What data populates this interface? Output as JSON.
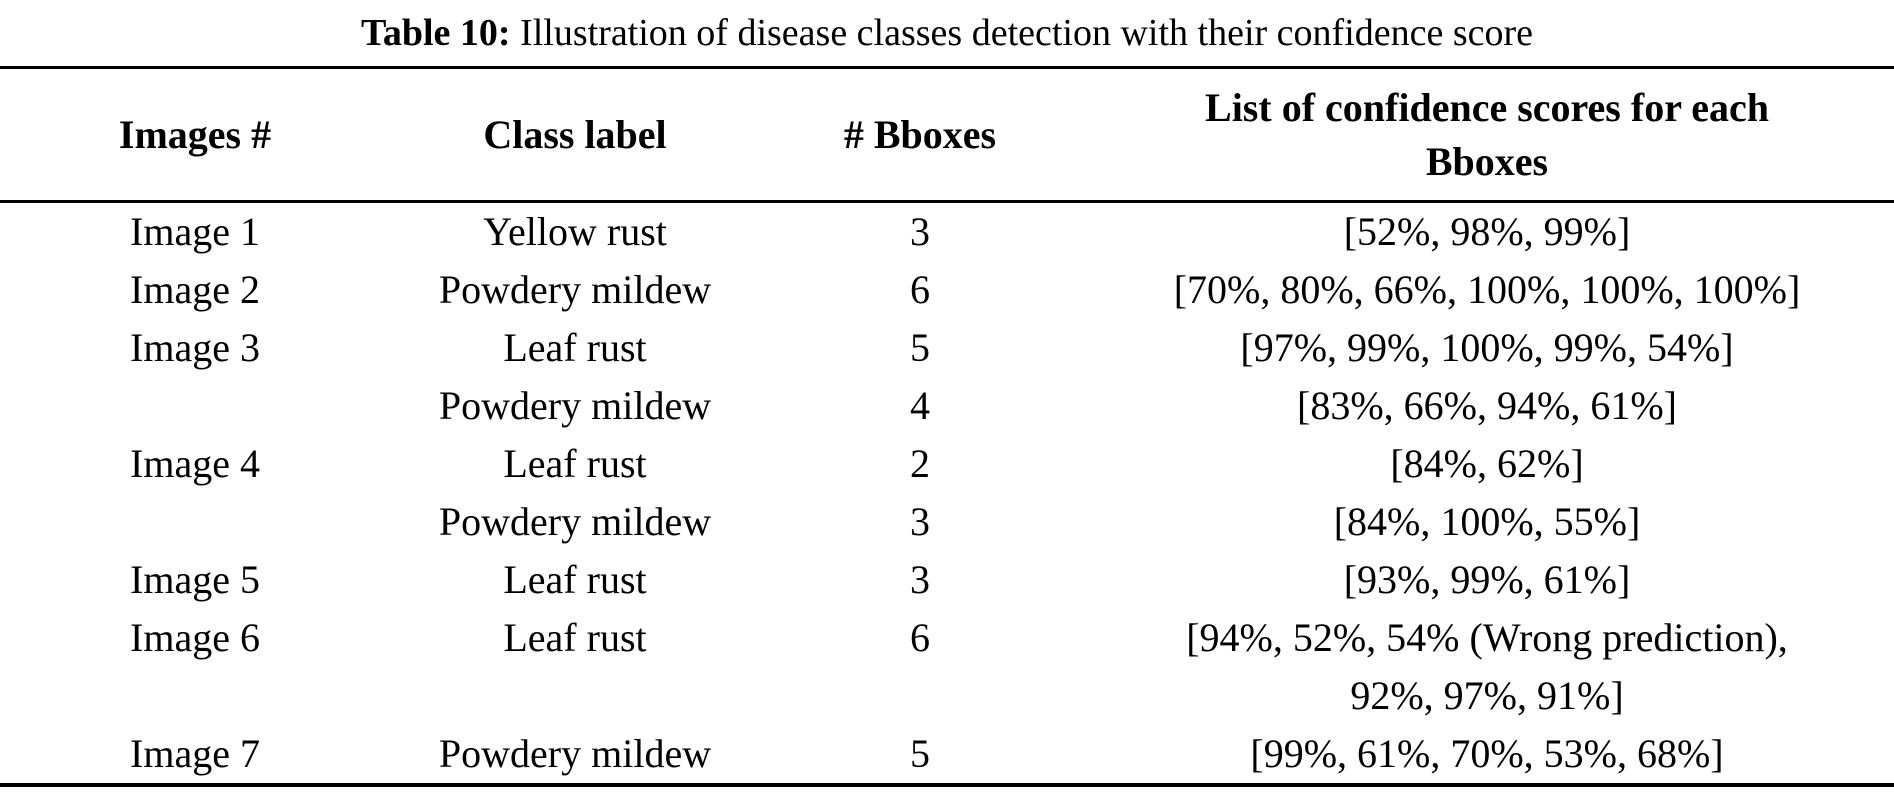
{
  "caption": {
    "label": "Table 10:",
    "text": " Illustration of disease classes detection with their confidence score"
  },
  "table": {
    "columns": {
      "images": "Images #",
      "class_label": "Class label",
      "num_bboxes": "# Bboxes",
      "scores": "List of confidence scores for each Bboxes"
    },
    "rows": [
      {
        "image": "Image 1",
        "class_label": "Yellow rust",
        "num_bboxes": "3",
        "scores": "[52%, 98%, 99%]"
      },
      {
        "image": "Image 2",
        "class_label": "Powdery mildew",
        "num_bboxes": "6",
        "scores": "[70%, 80%, 66%, 100%, 100%, 100%]"
      },
      {
        "image": "Image 3",
        "class_label": "Leaf rust",
        "num_bboxes": "5",
        "scores": "[97%, 99%, 100%, 99%, 54%]"
      },
      {
        "image": "",
        "class_label": "Powdery mildew",
        "num_bboxes": "4",
        "scores": "[83%, 66%, 94%, 61%]"
      },
      {
        "image": "Image 4",
        "class_label": "Leaf rust",
        "num_bboxes": "2",
        "scores": "[84%, 62%]"
      },
      {
        "image": "",
        "class_label": "Powdery mildew",
        "num_bboxes": "3",
        "scores": "[84%, 100%, 55%]"
      },
      {
        "image": "Image 5",
        "class_label": "Leaf rust",
        "num_bboxes": "3",
        "scores": "[93%, 99%, 61%]"
      },
      {
        "image": "Image 6",
        "class_label": "Leaf rust",
        "num_bboxes": "6",
        "scores": "[94%, 52%, 54% (Wrong prediction), 92%, 97%, 91%]"
      },
      {
        "image": "Image 7",
        "class_label": "Powdery mildew",
        "num_bboxes": "5",
        "scores": "[99%, 61%, 70%, 53%, 68%]"
      }
    ]
  }
}
